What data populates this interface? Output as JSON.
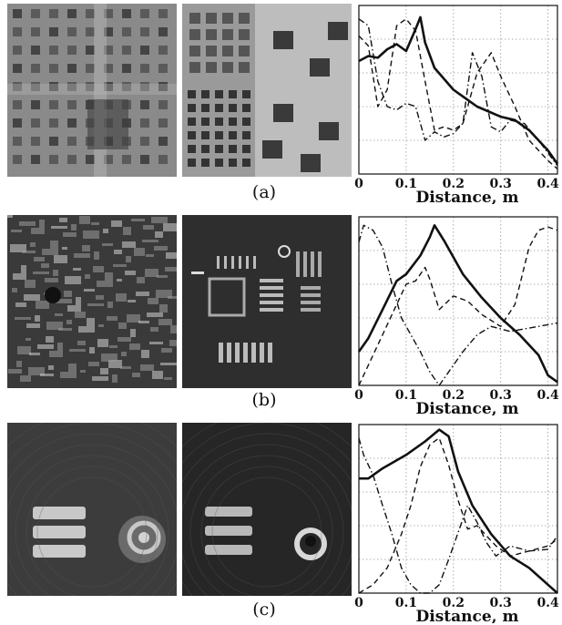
{
  "rows": [
    {
      "label": "(a)",
      "images": [
        {
          "name": "reconstruction-a-left",
          "bg": "#8a8a8a",
          "pattern": "grid-crosses"
        },
        {
          "name": "reconstruction-a-right",
          "bg": "#9a9a9a",
          "pattern": "checker"
        }
      ],
      "chart_data": {
        "type": "line",
        "xlabel": "Distance, m",
        "xlim": [
          0,
          0.42
        ],
        "ylim": [
          0,
          1
        ],
        "xticks": [
          "0",
          "0.1",
          "0.2",
          "0.3",
          "0.4"
        ],
        "xtick_values": [
          0,
          0.1,
          0.2,
          0.3,
          0.4
        ],
        "grid": true,
        "series": [
          {
            "style": "solid",
            "x": [
              0,
              0.02,
              0.04,
              0.06,
              0.08,
              0.1,
              0.12,
              0.13,
              0.14,
              0.16,
              0.2,
              0.25,
              0.3,
              0.33,
              0.36,
              0.4,
              0.42
            ],
            "y": [
              0.67,
              0.7,
              0.69,
              0.74,
              0.77,
              0.73,
              0.86,
              0.93,
              0.78,
              0.63,
              0.5,
              0.4,
              0.34,
              0.32,
              0.26,
              0.14,
              0.06
            ]
          },
          {
            "style": "dashed",
            "x": [
              0,
              0.02,
              0.04,
              0.06,
              0.08,
              0.1,
              0.12,
              0.14,
              0.16,
              0.18,
              0.2,
              0.22,
              0.25,
              0.28,
              0.3,
              0.33,
              0.36,
              0.4,
              0.42
            ],
            "y": [
              0.82,
              0.76,
              0.4,
              0.5,
              0.88,
              0.92,
              0.85,
              0.55,
              0.26,
              0.28,
              0.26,
              0.3,
              0.6,
              0.72,
              0.58,
              0.4,
              0.2,
              0.08,
              0.03
            ]
          },
          {
            "style": "dashdot",
            "x": [
              0,
              0.02,
              0.04,
              0.06,
              0.08,
              0.1,
              0.12,
              0.14,
              0.16,
              0.18,
              0.2,
              0.22,
              0.24,
              0.26,
              0.28,
              0.3,
              0.32,
              0.35,
              0.38,
              0.42
            ],
            "y": [
              0.92,
              0.88,
              0.55,
              0.4,
              0.38,
              0.42,
              0.4,
              0.2,
              0.25,
              0.22,
              0.24,
              0.3,
              0.72,
              0.58,
              0.28,
              0.25,
              0.32,
              0.3,
              0.2,
              0.05
            ]
          }
        ]
      }
    },
    {
      "label": "(b)",
      "images": [
        {
          "name": "reconstruction-b-left",
          "bg": "#3a3a3a",
          "pattern": "noisy"
        },
        {
          "name": "reconstruction-b-right",
          "bg": "#2e2e2e",
          "pattern": "circuit"
        }
      ],
      "chart_data": {
        "type": "line",
        "xlabel": "Distance, m",
        "xlim": [
          0,
          0.42
        ],
        "ylim": [
          0,
          1
        ],
        "xticks": [
          "0",
          "0.1",
          "0.2",
          "0.3",
          "0.4"
        ],
        "xtick_values": [
          0,
          0.1,
          0.2,
          0.3,
          0.4
        ],
        "grid": true,
        "series": [
          {
            "style": "solid",
            "x": [
              0,
              0.02,
              0.05,
              0.08,
              0.1,
              0.13,
              0.15,
              0.16,
              0.18,
              0.22,
              0.26,
              0.3,
              0.34,
              0.38,
              0.4,
              0.42
            ],
            "y": [
              0.2,
              0.28,
              0.45,
              0.62,
              0.66,
              0.77,
              0.88,
              0.95,
              0.86,
              0.66,
              0.52,
              0.4,
              0.3,
              0.18,
              0.06,
              0.02
            ]
          },
          {
            "style": "dashed",
            "x": [
              0,
              0.02,
              0.05,
              0.08,
              0.1,
              0.12,
              0.14,
              0.15,
              0.17,
              0.2,
              0.23,
              0.26,
              0.3,
              0.33,
              0.36,
              0.38,
              0.4,
              0.42
            ],
            "y": [
              0.0,
              0.12,
              0.3,
              0.48,
              0.6,
              0.62,
              0.7,
              0.63,
              0.45,
              0.53,
              0.5,
              0.42,
              0.35,
              0.48,
              0.82,
              0.92,
              0.94,
              0.92
            ]
          },
          {
            "style": "dashdot",
            "x": [
              0,
              0.01,
              0.03,
              0.05,
              0.07,
              0.09,
              0.11,
              0.13,
              0.15,
              0.17,
              0.19,
              0.22,
              0.25,
              0.28,
              0.32,
              0.36,
              0.4,
              0.42
            ],
            "y": [
              0.85,
              0.95,
              0.92,
              0.82,
              0.6,
              0.4,
              0.3,
              0.2,
              0.08,
              0.0,
              0.08,
              0.2,
              0.3,
              0.35,
              0.32,
              0.34,
              0.36,
              0.37
            ]
          }
        ]
      }
    },
    {
      "label": "(c)",
      "images": [
        {
          "name": "reconstruction-c-left",
          "bg": "#3c3c3c",
          "pattern": "bars-ring"
        },
        {
          "name": "reconstruction-c-right",
          "bg": "#262626",
          "pattern": "bars-ring-sharp"
        }
      ],
      "chart_data": {
        "type": "line",
        "xlabel": "Distance, m",
        "xlim": [
          0,
          0.42
        ],
        "ylim": [
          0,
          1
        ],
        "xticks": [
          "0",
          "0.1",
          "0.2",
          "0.3",
          "0.4"
        ],
        "xtick_values": [
          0,
          0.1,
          0.2,
          0.3,
          0.4
        ],
        "grid": true,
        "series": [
          {
            "style": "solid",
            "x": [
              0,
              0.02,
              0.05,
              0.1,
              0.14,
              0.17,
              0.19,
              0.21,
              0.24,
              0.28,
              0.32,
              0.36,
              0.4,
              0.42
            ],
            "y": [
              0.68,
              0.68,
              0.74,
              0.82,
              0.9,
              0.97,
              0.93,
              0.72,
              0.52,
              0.35,
              0.22,
              0.15,
              0.05,
              0.0
            ]
          },
          {
            "style": "dashed",
            "x": [
              0,
              0.03,
              0.06,
              0.09,
              0.11,
              0.13,
              0.15,
              0.17,
              0.19,
              0.21,
              0.23,
              0.25,
              0.27,
              0.29,
              0.32,
              0.36,
              0.4,
              0.42
            ],
            "y": [
              0.0,
              0.05,
              0.15,
              0.35,
              0.52,
              0.75,
              0.88,
              0.92,
              0.76,
              0.55,
              0.38,
              0.4,
              0.34,
              0.28,
              0.22,
              0.25,
              0.28,
              0.32
            ]
          },
          {
            "style": "dashdot",
            "x": [
              0,
              0.01,
              0.03,
              0.05,
              0.07,
              0.09,
              0.11,
              0.13,
              0.15,
              0.17,
              0.19,
              0.21,
              0.23,
              0.25,
              0.27,
              0.29,
              0.32,
              0.36,
              0.4,
              0.42
            ],
            "y": [
              0.92,
              0.82,
              0.7,
              0.52,
              0.35,
              0.15,
              0.05,
              0.0,
              0.0,
              0.05,
              0.2,
              0.36,
              0.52,
              0.42,
              0.3,
              0.22,
              0.28,
              0.25,
              0.26,
              0.34
            ]
          }
        ]
      }
    }
  ]
}
